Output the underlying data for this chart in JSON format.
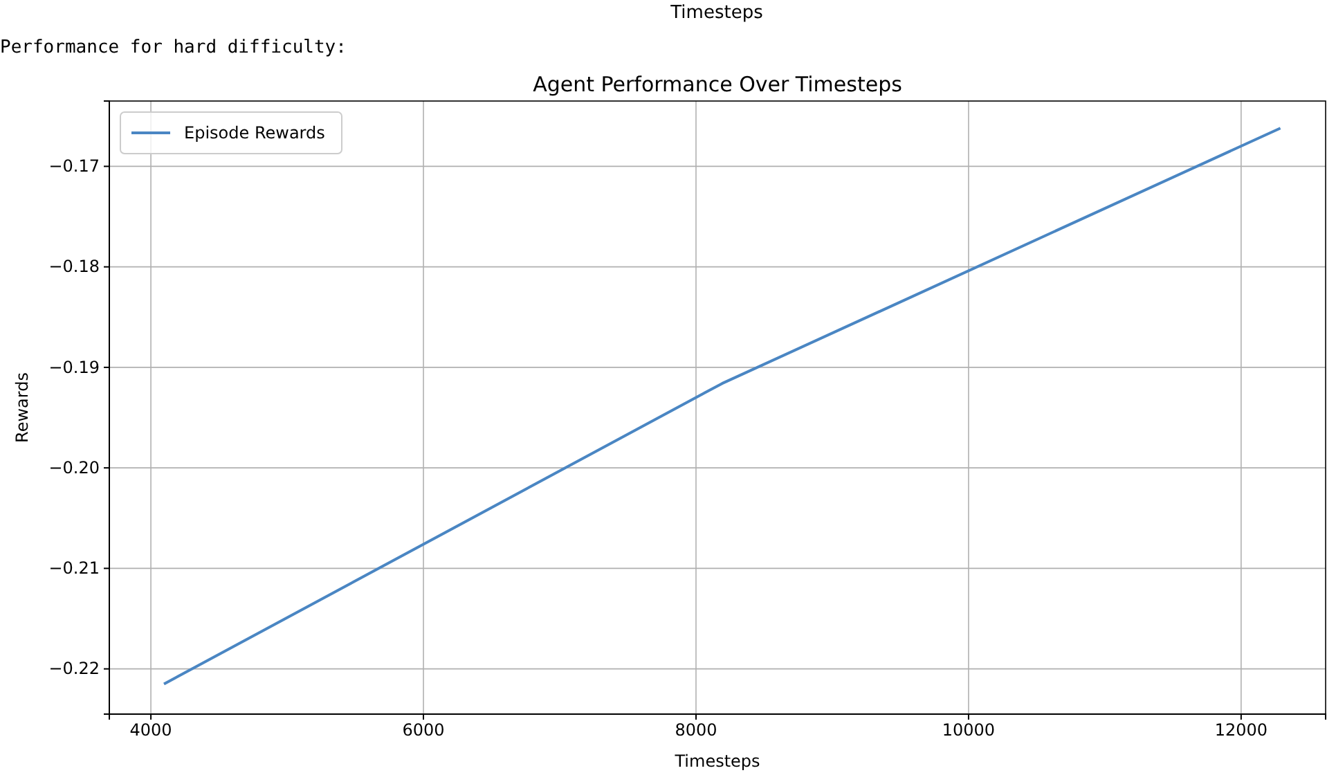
{
  "chart_data": {
    "type": "line",
    "title": "Agent Performance Over Timesteps",
    "xlabel": "Timesteps",
    "ylabel": "Rewards",
    "annotations": [
      "Timesteps",
      "Performance for hard difficulty:"
    ],
    "x": [
      4096,
      8192,
      12288
    ],
    "series": [
      {
        "name": "Episode Rewards",
        "color": "#4a86c3",
        "values": [
          -0.2215,
          -0.1916,
          -0.1662
        ]
      }
    ],
    "xlim": [
      3695,
      12620
    ],
    "xticks": [
      4000,
      6000,
      8000,
      10000,
      12000
    ],
    "ylim": [
      -0.2245,
      -0.1635
    ],
    "yticks": [
      {
        "value": -0.22,
        "label": "−0.22"
      },
      {
        "value": -0.21,
        "label": "−0.21"
      },
      {
        "value": -0.2,
        "label": "−0.20"
      },
      {
        "value": -0.19,
        "label": "−0.19"
      },
      {
        "value": -0.18,
        "label": "−0.18"
      },
      {
        "value": -0.17,
        "label": "−0.17"
      }
    ],
    "grid": true,
    "legend": "top left",
    "marker": "none",
    "line_style": "solid"
  }
}
